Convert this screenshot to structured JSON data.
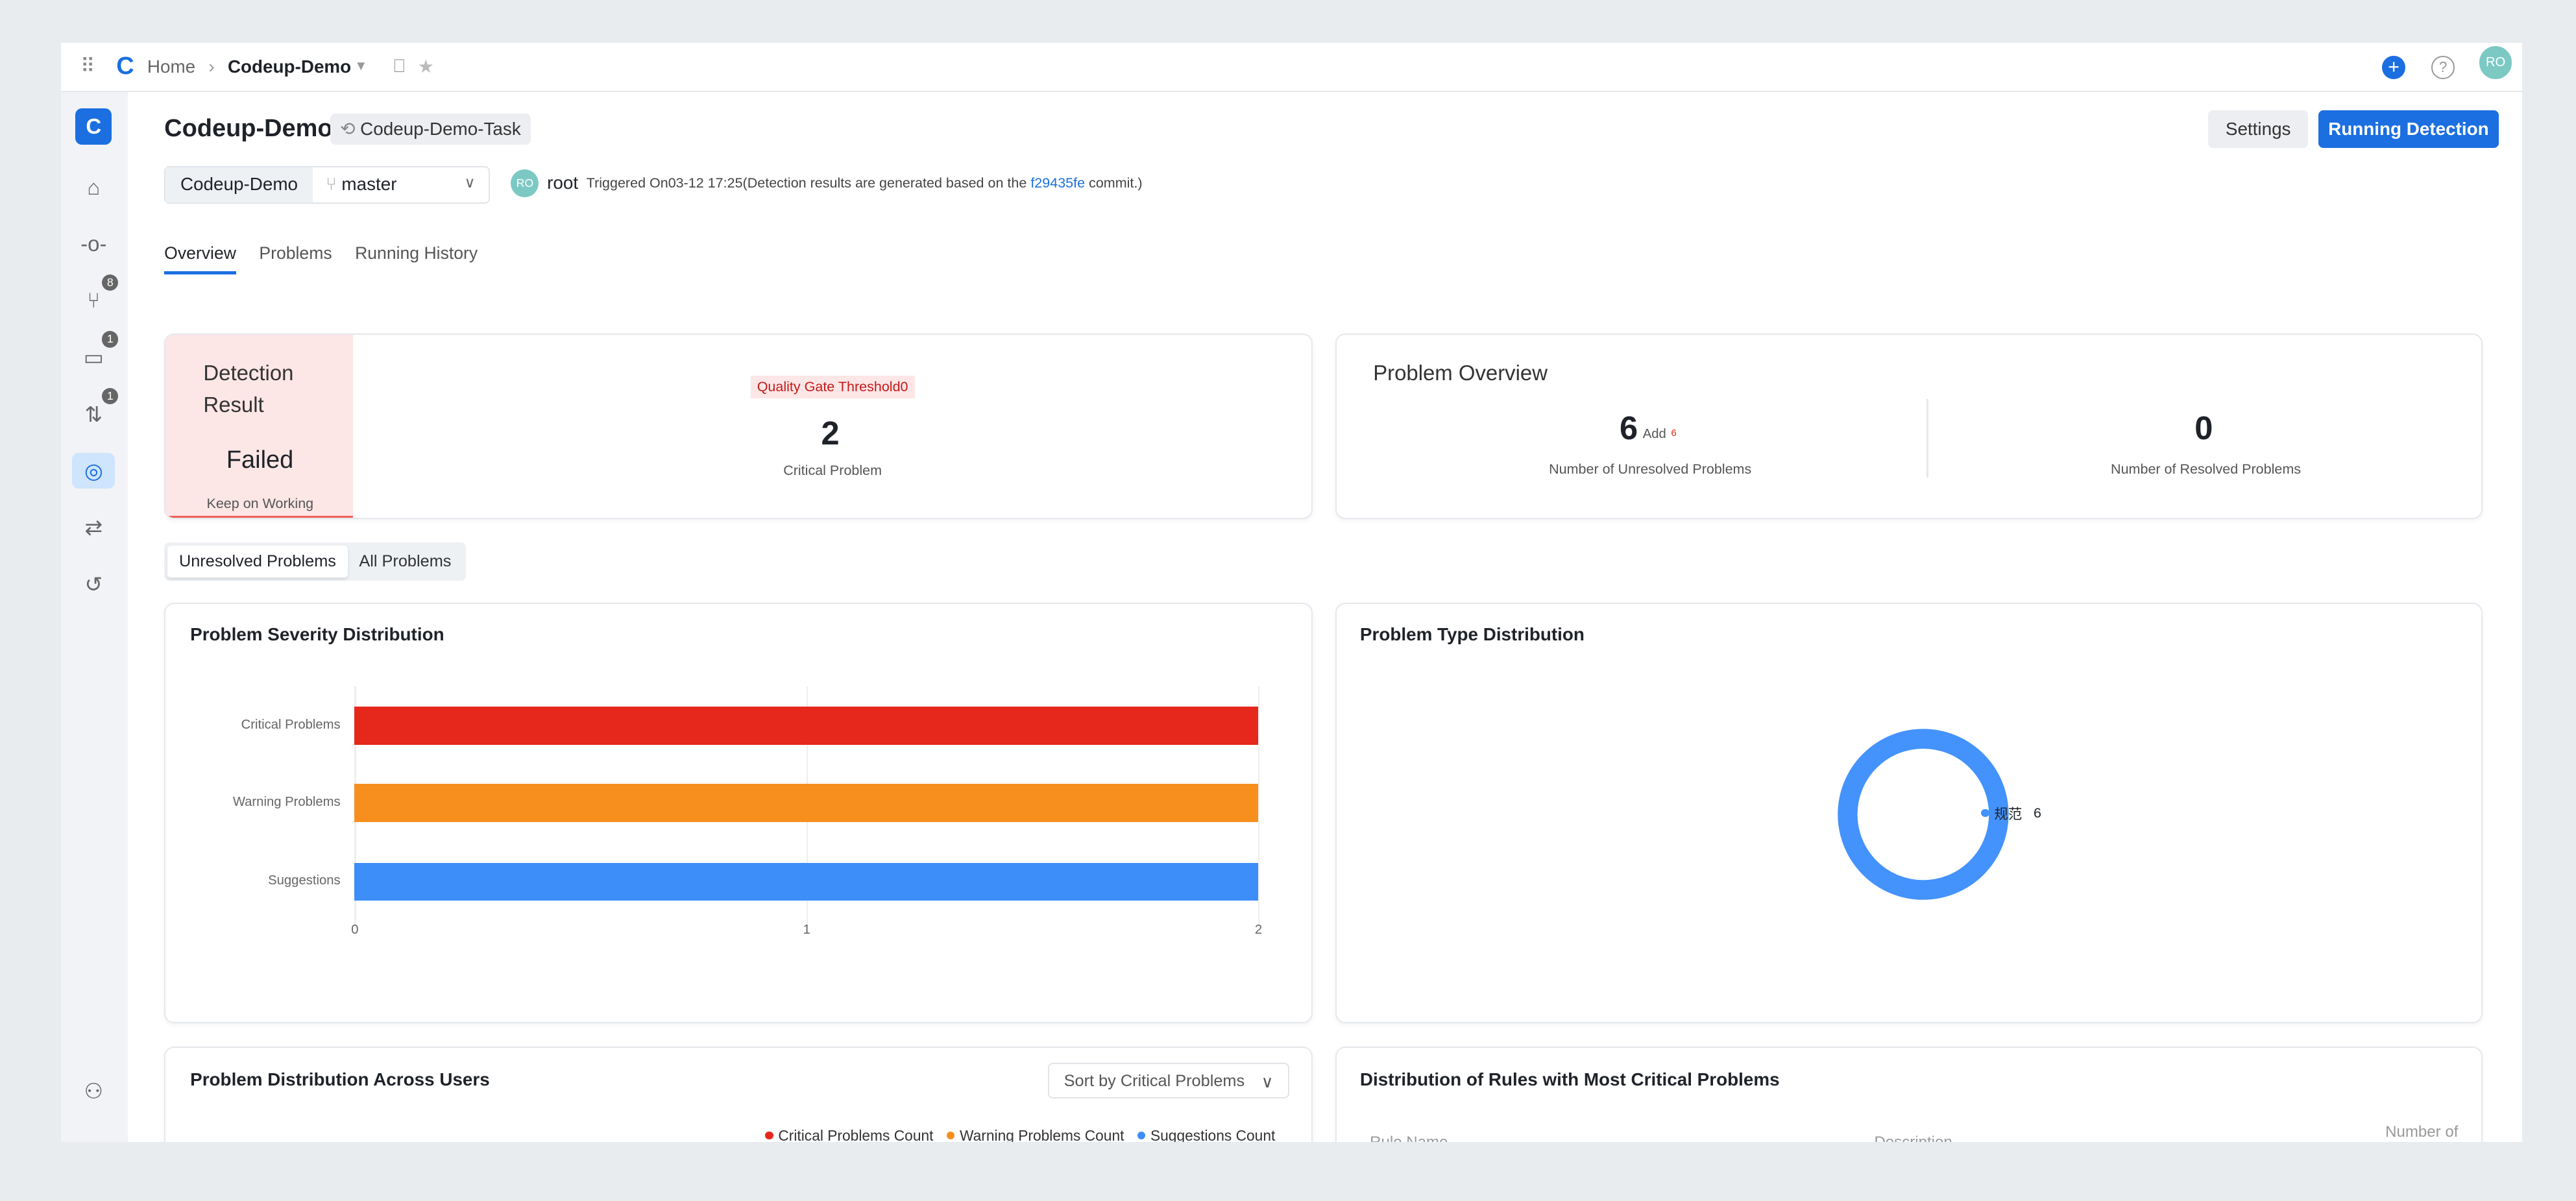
{
  "topbar": {
    "home": "Home",
    "separator": "›",
    "repo": "Codeup-Demo",
    "avatar": "RO"
  },
  "sidebar": {
    "items": [
      {
        "icon": "home-icon",
        "glyph": "⌂"
      },
      {
        "icon": "commit-icon",
        "glyph": "-o-"
      },
      {
        "icon": "branch-icon",
        "glyph": "⑂",
        "badge": "8"
      },
      {
        "icon": "tag-icon",
        "glyph": "▭",
        "badge": "1"
      },
      {
        "icon": "merge-request-icon",
        "glyph": "⇅",
        "badge": "1"
      },
      {
        "icon": "code-detection-icon",
        "glyph": "◎",
        "active": true
      },
      {
        "icon": "pipeline-icon",
        "glyph": "⇄"
      },
      {
        "icon": "history-icon",
        "glyph": "↺"
      }
    ],
    "bottom": [
      {
        "icon": "members-icon",
        "glyph": "⚇"
      }
    ]
  },
  "header": {
    "title": "Codeup-Demo",
    "task": "Codeup-Demo-Task",
    "settings": "Settings",
    "run": "Running Detection"
  },
  "branch": {
    "repo": "Codeup-Demo",
    "branch": "master",
    "avatar": "RO",
    "user": "root",
    "triggered": "Triggered On03-12 17:25(Detection results are generated based on the ",
    "commit": "f29435fe",
    "suffix": " commit.)"
  },
  "tabs": [
    {
      "label": "Overview",
      "active": true
    },
    {
      "label": "Problems"
    },
    {
      "label": "Running History"
    }
  ],
  "result": {
    "title1": "Detection",
    "title2": "Result",
    "status": "Failed",
    "sub": "Keep on Working",
    "gate": "Quality Gate Threshold0",
    "critical": "2",
    "critical_label": "Critical Problem"
  },
  "overview": {
    "title": "Problem Overview",
    "unresolved": "6",
    "add_label": "Add",
    "add_value": "6",
    "unresolved_label": "Number of Unresolved Problems",
    "resolved": "0",
    "resolved_label": "Number of Resolved Problems"
  },
  "filter": {
    "unresolved": "Unresolved Problems",
    "all": "All Problems"
  },
  "chart_data": [
    {
      "type": "bar",
      "orientation": "horizontal",
      "title": "Problem Severity Distribution",
      "categories": [
        "Critical Problems",
        "Warning Problems",
        "Suggestions"
      ],
      "values": [
        2,
        2,
        2
      ],
      "colors": [
        "#e5281b",
        "#f78f1e",
        "#3d8ef8"
      ],
      "xlim": [
        0,
        2
      ],
      "xticks": [
        "0",
        "1",
        "2"
      ],
      "grid": true
    },
    {
      "type": "pie",
      "variant": "donut",
      "title": "Problem Type Distribution",
      "categories": [
        "规范"
      ],
      "values": [
        6
      ],
      "colors": [
        "#4492fc"
      ],
      "legend": "right"
    }
  ],
  "users": {
    "title": "Problem Distribution Across Users",
    "sort": "Sort by Critical Problems",
    "legend": [
      {
        "label": "Critical Problems Count",
        "color": "#e5281b"
      },
      {
        "label": "Warning Problems Count",
        "color": "#f78f1e"
      },
      {
        "label": "Suggestions Count",
        "color": "#3d8ef8"
      }
    ]
  },
  "rules": {
    "title": "Distribution of Rules with Most Critical Problems",
    "columns": [
      "Rule Name",
      "Description",
      "Number of Problems"
    ]
  }
}
